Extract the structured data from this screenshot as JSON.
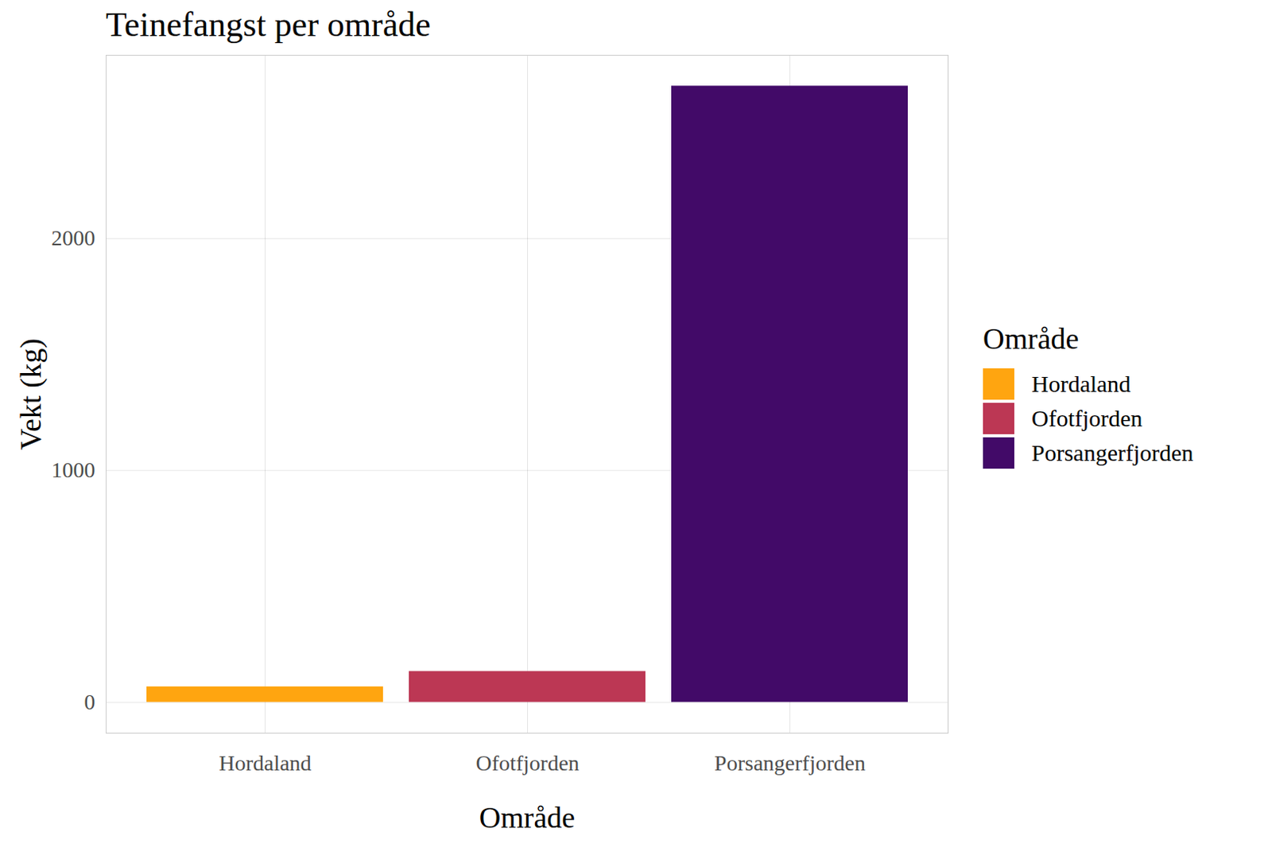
{
  "chart_data": {
    "type": "bar",
    "title": "Teinefangst per område",
    "x_label": "Område",
    "y_label": "Vekt (kg)",
    "legend_title": "Område",
    "categories": [
      "Hordaland",
      "Ofotfjorden",
      "Porsangerfjorden"
    ],
    "values": [
      67,
      133,
      2657
    ],
    "colors": [
      "#FFA510",
      "#BC3754",
      "#420A68"
    ],
    "ylim": [
      -133,
      2790
    ],
    "yticks": [
      0,
      1000,
      2000
    ],
    "grid": true,
    "legend": "right"
  }
}
